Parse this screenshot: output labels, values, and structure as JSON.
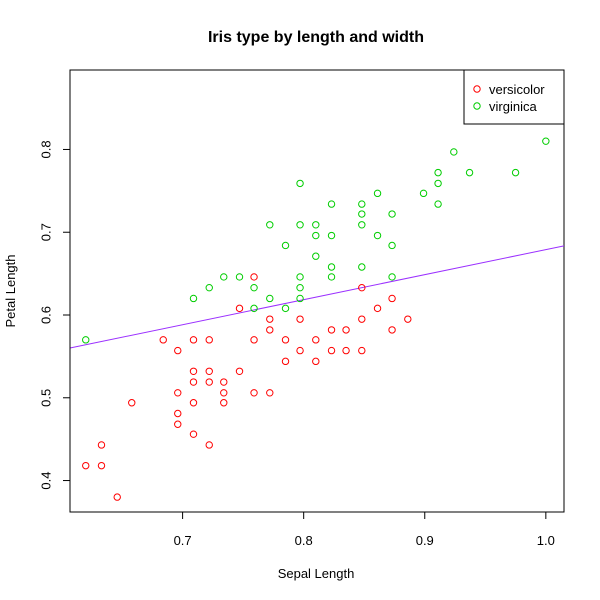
{
  "chart_data": {
    "type": "scatter",
    "title": "Iris type by length and width",
    "xlabel": "Sepal Length",
    "ylabel": "Petal Length",
    "xlim": [
      0.607,
      1.015
    ],
    "ylim": [
      0.362,
      0.896
    ],
    "xticks": [
      0.7,
      0.8,
      0.9,
      1.0
    ],
    "xtick_labels": [
      "0.7",
      "0.8",
      "0.9",
      "1.0"
    ],
    "yticks": [
      0.4,
      0.5,
      0.6,
      0.7,
      0.8
    ],
    "ytick_labels": [
      "0.4",
      "0.5",
      "0.6",
      "0.7",
      "0.8"
    ],
    "grid": false,
    "legend_position": "top-right",
    "series": [
      {
        "name": "versicolor",
        "color": "#ff0000",
        "marker": "open-circle",
        "points": [
          [
            0.62,
            0.418
          ],
          [
            0.633,
            0.443
          ],
          [
            0.633,
            0.418
          ],
          [
            0.646,
            0.38
          ],
          [
            0.658,
            0.494
          ],
          [
            0.684,
            0.57
          ],
          [
            0.696,
            0.557
          ],
          [
            0.696,
            0.506
          ],
          [
            0.696,
            0.481
          ],
          [
            0.696,
            0.468
          ],
          [
            0.709,
            0.57
          ],
          [
            0.709,
            0.532
          ],
          [
            0.709,
            0.519
          ],
          [
            0.709,
            0.494
          ],
          [
            0.709,
            0.456
          ],
          [
            0.722,
            0.57
          ],
          [
            0.722,
            0.532
          ],
          [
            0.722,
            0.519
          ],
          [
            0.722,
            0.443
          ],
          [
            0.734,
            0.519
          ],
          [
            0.734,
            0.506
          ],
          [
            0.734,
            0.494
          ],
          [
            0.747,
            0.608
          ],
          [
            0.747,
            0.532
          ],
          [
            0.759,
            0.646
          ],
          [
            0.759,
            0.57
          ],
          [
            0.759,
            0.506
          ],
          [
            0.772,
            0.595
          ],
          [
            0.772,
            0.582
          ],
          [
            0.772,
            0.506
          ],
          [
            0.785,
            0.57
          ],
          [
            0.785,
            0.544
          ],
          [
            0.797,
            0.595
          ],
          [
            0.797,
            0.557
          ],
          [
            0.81,
            0.57
          ],
          [
            0.81,
            0.544
          ],
          [
            0.823,
            0.582
          ],
          [
            0.823,
            0.557
          ],
          [
            0.835,
            0.582
          ],
          [
            0.835,
            0.557
          ],
          [
            0.848,
            0.633
          ],
          [
            0.848,
            0.595
          ],
          [
            0.848,
            0.557
          ],
          [
            0.861,
            0.608
          ],
          [
            0.873,
            0.62
          ],
          [
            0.873,
            0.582
          ],
          [
            0.886,
            0.595
          ]
        ]
      },
      {
        "name": "virginica",
        "color": "#00cd00",
        "marker": "open-circle",
        "points": [
          [
            0.62,
            0.57
          ],
          [
            0.709,
            0.62
          ],
          [
            0.722,
            0.633
          ],
          [
            0.734,
            0.646
          ],
          [
            0.747,
            0.646
          ],
          [
            0.759,
            0.633
          ],
          [
            0.759,
            0.608
          ],
          [
            0.772,
            0.709
          ],
          [
            0.772,
            0.62
          ],
          [
            0.785,
            0.684
          ],
          [
            0.785,
            0.608
          ],
          [
            0.797,
            0.759
          ],
          [
            0.797,
            0.709
          ],
          [
            0.797,
            0.646
          ],
          [
            0.797,
            0.633
          ],
          [
            0.797,
            0.62
          ],
          [
            0.81,
            0.709
          ],
          [
            0.81,
            0.696
          ],
          [
            0.81,
            0.671
          ],
          [
            0.823,
            0.734
          ],
          [
            0.823,
            0.696
          ],
          [
            0.823,
            0.658
          ],
          [
            0.823,
            0.646
          ],
          [
            0.848,
            0.734
          ],
          [
            0.848,
            0.722
          ],
          [
            0.848,
            0.709
          ],
          [
            0.848,
            0.658
          ],
          [
            0.861,
            0.747
          ],
          [
            0.861,
            0.696
          ],
          [
            0.873,
            0.722
          ],
          [
            0.873,
            0.684
          ],
          [
            0.873,
            0.646
          ],
          [
            0.899,
            0.747
          ],
          [
            0.911,
            0.772
          ],
          [
            0.911,
            0.759
          ],
          [
            0.911,
            0.734
          ],
          [
            0.924,
            0.797
          ],
          [
            0.937,
            0.772
          ],
          [
            0.975,
            0.772
          ],
          [
            1.0,
            0.81
          ]
        ]
      }
    ],
    "trend_line": {
      "color": "#9b30ff",
      "intercept": 0.3766,
      "slope": 0.3024
    }
  }
}
